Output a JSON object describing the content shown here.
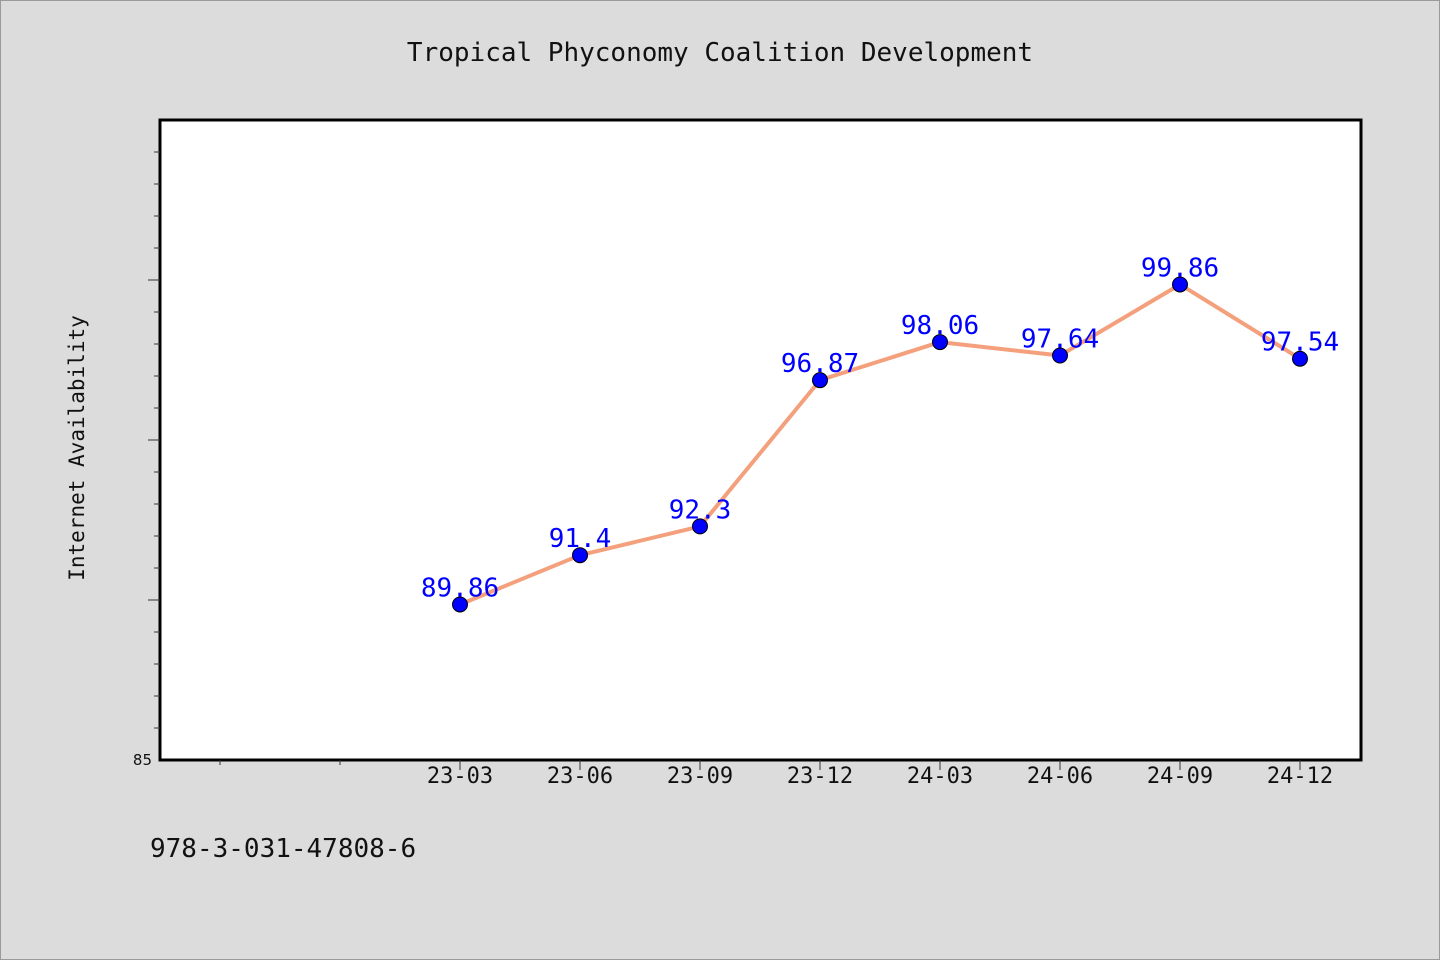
{
  "chart_data": {
    "type": "line",
    "title": "Tropical Phyconomy Coalition Development",
    "ylabel": "Internet Availability",
    "xlabel": "",
    "categories": [
      "23-03",
      "23-06",
      "23-09",
      "23-12",
      "24-03",
      "24-06",
      "24-09",
      "24-12"
    ],
    "series": [
      {
        "values": [
          89.86,
          91.4,
          92.3,
          96.87,
          98.06,
          97.64,
          99.86,
          97.54
        ],
        "labels": [
          "89.86",
          "91.4",
          "92.3",
          "96.87",
          "98.06",
          "97.64",
          "99.86",
          "97.54"
        ]
      }
    ],
    "ylim": [
      85,
      105
    ],
    "y_tick_labels": [
      "85"
    ],
    "grid": false,
    "colors": {
      "line": "#f4a07c",
      "marker": "#0000ff",
      "data_label": "#0000ff",
      "background": "#dcdcdc",
      "plot_background": "#ffffff"
    }
  },
  "footer": {
    "text": "978-3-031-47808-6"
  }
}
